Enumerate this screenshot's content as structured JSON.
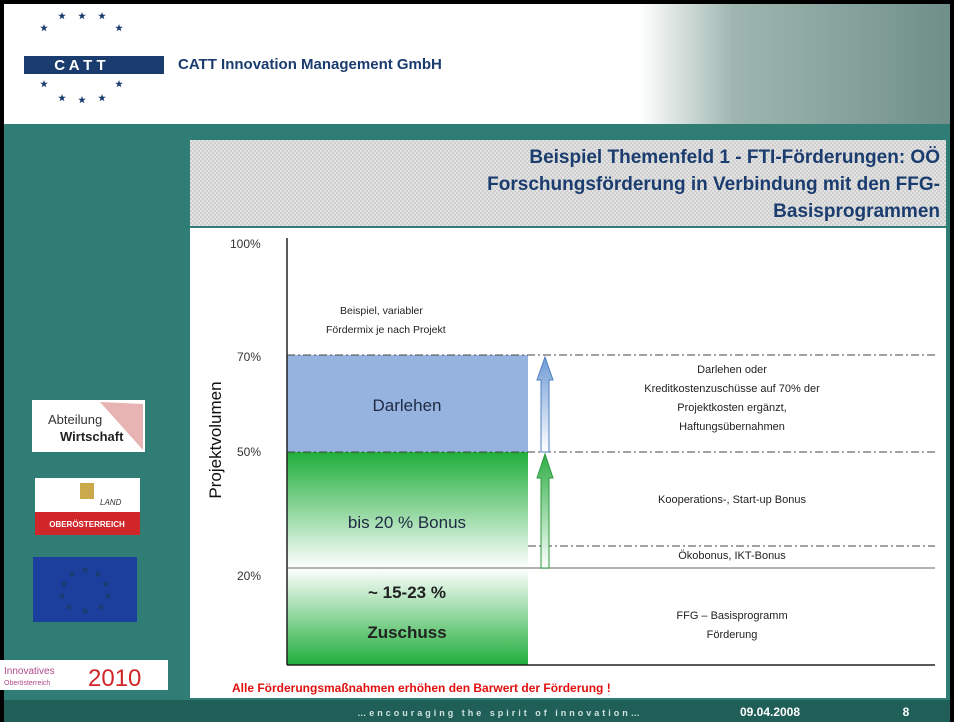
{
  "header": {
    "logo_text": "C A T T",
    "company": "CATT Innovation Management GmbH"
  },
  "title": {
    "lines": [
      "Beispiel Themenfeld 1 - FTI-Förderungen: OÖ",
      "Forschungsförderung in Verbindung mit den FFG-",
      "Basisprogrammen"
    ]
  },
  "diagram": {
    "axis_title": "Projektvolumen",
    "axis_labels": [
      "100%",
      "70%",
      "50%",
      "20%"
    ],
    "example_note": [
      "Beispiel, variabler",
      "Fördermix je nach Projekt"
    ],
    "boxes": [
      {
        "lines": [
          "Darlehen"
        ]
      },
      {
        "lines": [
          "bis 20 % Bonus"
        ]
      },
      {
        "lines": [
          "~ 15-23 %",
          "Zuschuss"
        ]
      }
    ],
    "descriptions": [
      {
        "lines": [
          "Darlehen oder",
          "Kreditkostenzuschüsse auf 70% der",
          "Projektkosten ergänzt,",
          "Haftungsübernahmen"
        ]
      },
      {
        "lines": [
          "Kooperations-, Start-up Bonus"
        ]
      },
      {
        "lines": [
          "Ökobonus, IKT-Bonus"
        ]
      },
      {
        "lines": [
          "FFG – Basisprogramm",
          "Förderung"
        ]
      }
    ]
  },
  "logos": {
    "abteilung": [
      "Abteilung",
      "Wirtschaft"
    ],
    "land": [
      "LAND",
      "OBERÖSTERREICH"
    ],
    "innovatives": [
      "Innovatives",
      "Oberösterreich",
      "2010"
    ]
  },
  "footer": {
    "note": "Alle Förderungsmaßnahmen erhöhen den Barwert der Förderung !",
    "tagline": "…encouraging the spirit of innovation…",
    "date": "09.04.2008",
    "page": "8"
  }
}
